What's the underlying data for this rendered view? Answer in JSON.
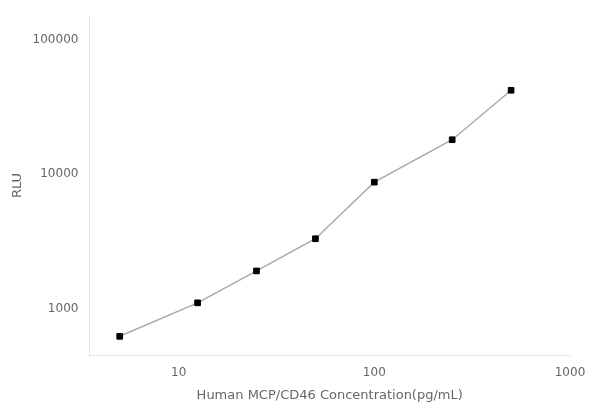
{
  "chart_data": {
    "type": "line",
    "x_label": "Human MCP/CD46 Concentration(pg/mL)",
    "y_label": "RLU",
    "x": [
      5,
      12.5,
      25,
      50,
      100,
      250,
      500
    ],
    "series": [
      {
        "type": "line",
        "color": "#aaaaaa",
        "values": [
          620,
          1100,
          1900,
          3300,
          8700,
          18000,
          42000
        ]
      },
      {
        "type": "scatter",
        "color": "black",
        "marker": "square",
        "values": [
          620,
          1100,
          1900,
          3300,
          8700,
          18000,
          42000
        ]
      }
    ],
    "log": true,
    "xlim": [
      3.5,
      1000
    ],
    "ylim": [
      450,
      150000
    ],
    "xticks": [
      10,
      100,
      1000
    ],
    "yticks": [
      1000,
      10000,
      100000
    ],
    "grid": false
  }
}
